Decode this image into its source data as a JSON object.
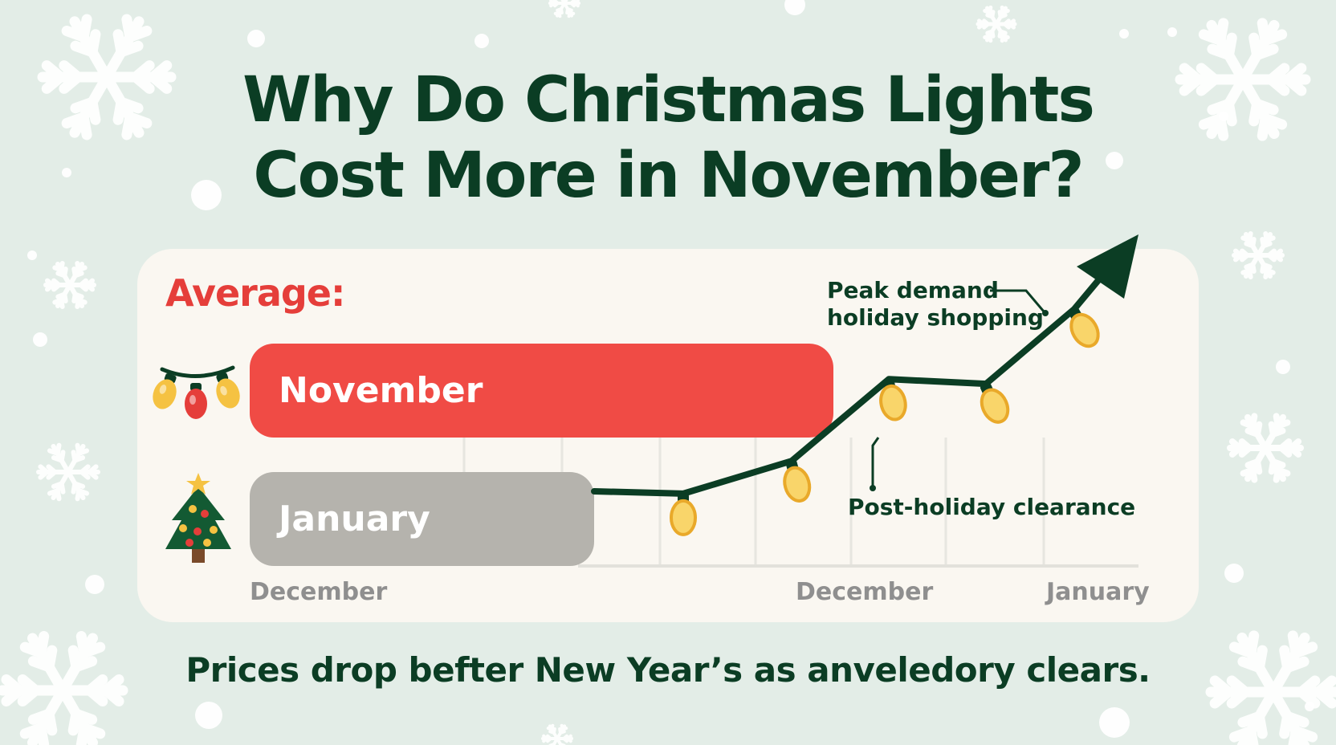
{
  "title": {
    "line1": "Why Do Christmas Lights",
    "line2": "Cost More in November?"
  },
  "colors": {
    "background": "#e3ede7",
    "title": "#0b3d24",
    "november_bar": "#f04b45",
    "january_bar": "#b5b3ad",
    "line": "#0b3d24",
    "bulb": "#f5c242",
    "accent_red": "#e53e3a"
  },
  "chart_data": {
    "type": "bar",
    "bar_label": "Average:",
    "bars": [
      {
        "category": "November",
        "icon": "string-lights-icon",
        "relative_value": 1.0
      },
      {
        "category": "January",
        "icon": "christmas-tree-icon",
        "relative_value": 0.59
      }
    ],
    "xtick_labels": [
      "December",
      "December",
      "January"
    ],
    "grid": true,
    "trend_line": {
      "type": "line",
      "values": [
        0.22,
        0.21,
        0.35,
        0.7,
        0.68,
        1.0
      ],
      "ends_with_arrow": true,
      "marker_icon": "bulb-icon"
    },
    "annotations": [
      {
        "text_line1": "Peak demand",
        "text_line2": "holiday shopping"
      },
      {
        "text_line1": "Post-holiday clearance"
      }
    ]
  },
  "footer": "Prices drop befter New Year’s as anveledory clears."
}
